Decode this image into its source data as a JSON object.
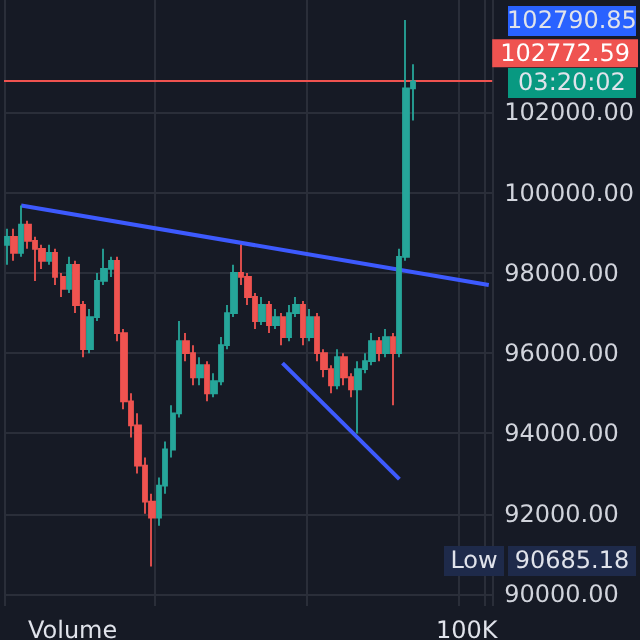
{
  "chart_data": {
    "type": "candlestick",
    "categories": [
      null,
      null,
      null,
      null,
      null,
      null,
      null,
      null,
      null,
      null,
      null,
      null,
      null,
      null,
      null,
      null,
      null,
      null,
      null,
      null,
      null,
      null,
      null,
      null,
      null,
      null,
      null,
      null,
      null,
      null,
      null,
      null,
      null,
      null,
      null,
      null,
      null,
      null,
      null,
      null,
      null,
      null,
      null,
      null,
      null,
      null,
      null,
      null,
      null,
      null,
      null,
      null,
      null,
      null,
      null,
      null,
      null,
      null,
      null,
      null,
      null,
      null,
      null,
      null,
      null,
      null,
      null,
      null,
      null,
      null,
      null
    ],
    "ohlc": [
      [
        98700,
        99100,
        98200,
        98900
      ],
      [
        98900,
        99100,
        98300,
        98500
      ],
      [
        98500,
        99680,
        98400,
        99200
      ],
      [
        99200,
        99300,
        98600,
        98800
      ],
      [
        98800,
        98900,
        97800,
        98600
      ],
      [
        98600,
        98700,
        98100,
        98300
      ],
      [
        98300,
        98700,
        98200,
        98500
      ],
      [
        98500,
        98600,
        97700,
        97900
      ],
      [
        97900,
        98000,
        97400,
        97600
      ],
      [
        97600,
        98400,
        97500,
        98200
      ],
      [
        98200,
        98300,
        97000,
        97200
      ],
      [
        97200,
        97300,
        95900,
        96100
      ],
      [
        96100,
        97100,
        96000,
        96900
      ],
      [
        96900,
        98000,
        96800,
        97800
      ],
      [
        97800,
        98600,
        97700,
        98100
      ],
      [
        98100,
        98400,
        97900,
        98300
      ],
      [
        98300,
        98400,
        96300,
        96500
      ],
      [
        96500,
        96600,
        94600,
        94800
      ],
      [
        94800,
        95000,
        93900,
        94200
      ],
      [
        94200,
        94500,
        93000,
        93200
      ],
      [
        93200,
        93400,
        92000,
        92300
      ],
      [
        92300,
        92500,
        90685.18,
        91900
      ],
      [
        91900,
        92900,
        91700,
        92700
      ],
      [
        92700,
        93800,
        92500,
        93600
      ],
      [
        93600,
        94700,
        93400,
        94500
      ],
      [
        94500,
        96800,
        94400,
        96300
      ],
      [
        96300,
        96500,
        95800,
        96000
      ],
      [
        96000,
        96200,
        95200,
        95400
      ],
      [
        95400,
        95900,
        95200,
        95700
      ],
      [
        95700,
        95800,
        94800,
        95000
      ],
      [
        95000,
        95500,
        94900,
        95300
      ],
      [
        95300,
        96400,
        95200,
        96200
      ],
      [
        96200,
        97200,
        96100,
        97000
      ],
      [
        97000,
        98200,
        96900,
        98000
      ],
      [
        98000,
        98700,
        97700,
        97900
      ],
      [
        97900,
        98000,
        97200,
        97400
      ],
      [
        97400,
        97500,
        96600,
        96800
      ],
      [
        96800,
        97400,
        96700,
        97200
      ],
      [
        97200,
        97300,
        96500,
        96700
      ],
      [
        96700,
        97100,
        96600,
        96900
      ],
      [
        96900,
        97000,
        96200,
        96400
      ],
      [
        96400,
        97200,
        96300,
        97000
      ],
      [
        97000,
        97400,
        96900,
        97200
      ],
      [
        97200,
        97300,
        96200,
        96400
      ],
      [
        96400,
        97100,
        96300,
        96900
      ],
      [
        96900,
        97000,
        95800,
        96000
      ],
      [
        96000,
        96100,
        95400,
        95600
      ],
      [
        95600,
        95700,
        95000,
        95200
      ],
      [
        95200,
        96100,
        95100,
        95900
      ],
      [
        95900,
        96000,
        95200,
        95400
      ],
      [
        95400,
        95500,
        94900,
        95100
      ],
      [
        95100,
        95800,
        94000,
        95600
      ],
      [
        95600,
        96000,
        95500,
        95800
      ],
      [
        95800,
        96500,
        95700,
        96300
      ],
      [
        96300,
        96400,
        95800,
        96000
      ],
      [
        96000,
        96600,
        95900,
        96400
      ],
      [
        96400,
        96500,
        94700,
        96000
      ],
      [
        96000,
        98600,
        95900,
        98400
      ],
      [
        98400,
        104300,
        98300,
        102600
      ],
      [
        102600,
        103200,
        101800,
        102772.59
      ],
      null,
      null,
      null,
      null,
      null,
      null,
      null,
      null,
      null,
      null,
      null
    ],
    "series": [
      {
        "type": "line",
        "color": "#3d5afe",
        "values": [
          null,
          null,
          99680,
          null,
          null,
          null,
          null,
          null,
          null,
          null,
          null,
          null,
          null,
          null,
          null,
          null,
          null,
          null,
          null,
          null,
          null,
          null,
          null,
          null,
          null,
          null,
          null,
          null,
          null,
          null,
          null,
          null,
          null,
          null,
          null,
          null,
          null,
          null,
          null,
          null,
          null,
          null,
          null,
          null,
          null,
          null,
          null,
          null,
          null,
          null,
          null,
          null,
          null,
          null,
          null,
          null,
          null,
          null,
          null,
          null,
          null,
          null,
          null,
          null,
          null,
          null,
          null,
          null,
          null,
          null,
          97700
        ]
      },
      {
        "type": "line",
        "color": "#3d5afe",
        "values": [
          null,
          null,
          null,
          null,
          null,
          null,
          null,
          null,
          null,
          null,
          null,
          null,
          null,
          null,
          null,
          null,
          null,
          null,
          null,
          null,
          null,
          null,
          null,
          null,
          null,
          null,
          null,
          null,
          null,
          null,
          null,
          null,
          null,
          null,
          null,
          null,
          null,
          null,
          null,
          null,
          95750,
          null,
          null,
          null,
          null,
          null,
          null,
          null,
          null,
          null,
          null,
          null,
          null,
          null,
          null,
          null,
          null,
          92860,
          null,
          null,
          null,
          null,
          null,
          null,
          null,
          null,
          null,
          null,
          null,
          null,
          null
        ]
      }
    ],
    "ylim": [
      89700,
      104800
    ],
    "yticks": [
      {
        "value": 90000,
        "label": "90000.00"
      },
      {
        "value": 92000,
        "label": "92000.00"
      },
      {
        "value": 94000,
        "label": "94000.00"
      },
      {
        "value": 96000,
        "label": "96000.00"
      },
      {
        "value": 98000,
        "label": "98000.00"
      },
      {
        "value": 100000,
        "label": "100000.00"
      },
      {
        "value": 102000,
        "label": "102000.00"
      }
    ],
    "ref_lines": [
      {
        "axis": "y",
        "value": 102772.59,
        "label": "102772.59",
        "color": "#ef5350",
        "line_style": "solid"
      }
    ],
    "annotations": [
      "102790.85",
      "03:20:02",
      "Low",
      "90685.18",
      "Volume",
      "100K"
    ],
    "grid": true,
    "tick_labels": "y"
  }
}
